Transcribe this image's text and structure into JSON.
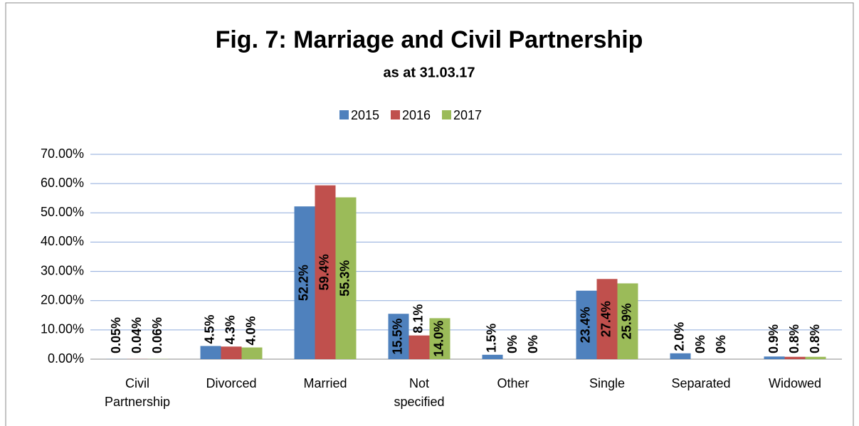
{
  "chart_data": {
    "type": "bar",
    "title": "Fig. 7: Marriage and Civil Partnership",
    "subtitle": "as at 31.03.17",
    "categories": [
      "Civil Partnership",
      "Divorced",
      "Married",
      "Not specified",
      "Other",
      "Single",
      "Separated",
      "Widowed"
    ],
    "series": [
      {
        "name": "2015",
        "color": "#4f81bd",
        "values": [
          0.05,
          4.5,
          52.2,
          15.5,
          1.5,
          23.4,
          2.0,
          0.9
        ],
        "value_labels": [
          "0.05%",
          "4.5%",
          "52.2%",
          "15.5%",
          "1.5%",
          "23.4%",
          "2.0%",
          "0.9%"
        ]
      },
      {
        "name": "2016",
        "color": "#c0504d",
        "values": [
          0.04,
          4.3,
          59.4,
          8.1,
          0,
          27.4,
          0,
          0.8
        ],
        "value_labels": [
          "0.04%",
          "4.3%",
          "59.4%",
          "8.1%",
          "0%",
          "27.4%",
          "0%",
          "0.8%"
        ]
      },
      {
        "name": "2017",
        "color": "#9bbb59",
        "values": [
          0.06,
          4.0,
          55.3,
          14.0,
          0,
          25.9,
          0,
          0.8
        ],
        "value_labels": [
          "0.06%",
          "4.0%",
          "55.3%",
          "14.0%",
          "0%",
          "25.9%",
          "0%",
          "0.8%"
        ]
      }
    ],
    "ylim": [
      0,
      70
    ],
    "yticks": [
      {
        "value": 0,
        "label": "0.00%"
      },
      {
        "value": 10,
        "label": "10.00%"
      },
      {
        "value": 20,
        "label": "20.00%"
      },
      {
        "value": 30,
        "label": "30.00%"
      },
      {
        "value": 40,
        "label": "40.00%"
      },
      {
        "value": 50,
        "label": "50.00%"
      },
      {
        "value": 60,
        "label": "60.00%"
      },
      {
        "value": 70,
        "label": "70.00%"
      }
    ],
    "grid": true,
    "legend": "top"
  }
}
